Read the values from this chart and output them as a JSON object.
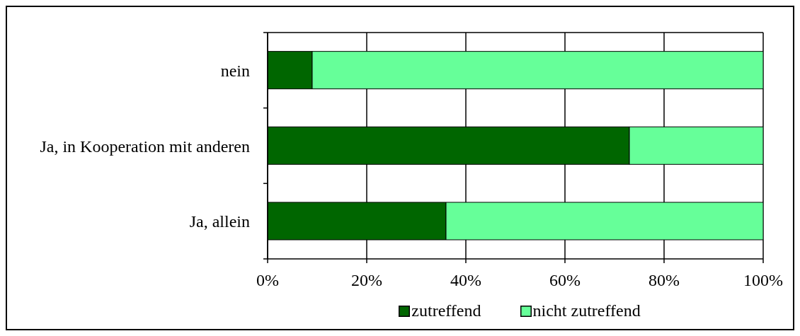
{
  "chart_data": {
    "type": "bar",
    "orientation": "horizontal",
    "stacked": true,
    "categories": [
      "nein",
      "Ja, in Kooperation mit anderen",
      "Ja, allein"
    ],
    "series": [
      {
        "name": "zutreffend",
        "color": "#006600",
        "values": [
          9,
          73,
          36
        ]
      },
      {
        "name": "nicht zutreffend",
        "color": "#66ff99",
        "values": [
          91,
          27,
          64
        ]
      }
    ],
    "xlim": [
      0,
      100
    ],
    "xticks": [
      {
        "value": 0,
        "label": "0%"
      },
      {
        "value": 20,
        "label": "20%"
      },
      {
        "value": 40,
        "label": "40%"
      },
      {
        "value": 60,
        "label": "60%"
      },
      {
        "value": 80,
        "label": "80%"
      },
      {
        "value": 100,
        "label": "100%"
      }
    ],
    "grid": "x",
    "legend": "bottom"
  }
}
